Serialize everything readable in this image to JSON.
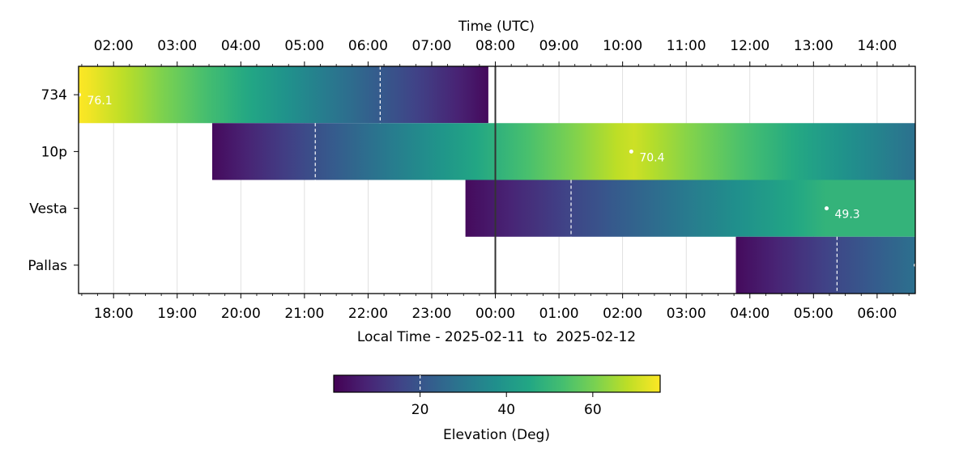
{
  "chart_data": {
    "type": "heatmap",
    "title": "",
    "top_axis_label": "Time (UTC)",
    "bottom_axis_label": "Local Time - 2025-02-11  to  2025-02-12",
    "x_range_utc_hours": [
      1.45,
      14.6
    ],
    "midnight_line_utc_hour": 8.0,
    "top_ticks": [
      {
        "hour": 2,
        "label": "02:00"
      },
      {
        "hour": 3,
        "label": "03:00"
      },
      {
        "hour": 4,
        "label": "04:00"
      },
      {
        "hour": 5,
        "label": "05:00"
      },
      {
        "hour": 6,
        "label": "06:00"
      },
      {
        "hour": 7,
        "label": "07:00"
      },
      {
        "hour": 8,
        "label": "08:00"
      },
      {
        "hour": 9,
        "label": "09:00"
      },
      {
        "hour": 10,
        "label": "10:00"
      },
      {
        "hour": 11,
        "label": "11:00"
      },
      {
        "hour": 12,
        "label": "12:00"
      },
      {
        "hour": 13,
        "label": "13:00"
      },
      {
        "hour": 14,
        "label": "14:00"
      }
    ],
    "bottom_ticks": [
      {
        "hour": 2,
        "label": "18:00"
      },
      {
        "hour": 3,
        "label": "19:00"
      },
      {
        "hour": 4,
        "label": "20:00"
      },
      {
        "hour": 5,
        "label": "21:00"
      },
      {
        "hour": 6,
        "label": "22:00"
      },
      {
        "hour": 7,
        "label": "23:00"
      },
      {
        "hour": 8,
        "label": "00:00"
      },
      {
        "hour": 9,
        "label": "01:00"
      },
      {
        "hour": 10,
        "label": "02:00"
      },
      {
        "hour": 11,
        "label": "03:00"
      },
      {
        "hour": 12,
        "label": "04:00"
      },
      {
        "hour": 13,
        "label": "05:00"
      },
      {
        "hour": 14,
        "label": "06:00"
      }
    ],
    "elevation_threshold_deg": 20,
    "colorbar": {
      "label": "Elevation (Deg)",
      "range": [
        0,
        75.6
      ],
      "ticks": [
        {
          "value": 20,
          "label": "20"
        },
        {
          "value": 40,
          "label": "40"
        },
        {
          "value": 60,
          "label": "60"
        }
      ],
      "threshold_marker": 20
    },
    "objects": [
      {
        "name": "734",
        "start_hour": 1.45,
        "end_hour": 7.89,
        "peak_hour": 1.45,
        "peak_elevation": 76.1,
        "peak_label": "76.1",
        "end_elevation": 2,
        "threshold_hour": 6.19
      },
      {
        "name": "10p",
        "start_hour": 3.55,
        "end_hour": 14.6,
        "peak_hour": 10.13,
        "peak_elevation": 70.4,
        "peak_label": "70.4",
        "start_elevation": 2,
        "end_elevation": 28,
        "threshold_hour": 5.17
      },
      {
        "name": "Vesta",
        "start_hour": 7.53,
        "end_hour": 14.6,
        "peak_hour": 13.2,
        "peak_elevation": 49.3,
        "peak_label": "49.3",
        "start_elevation": 2,
        "threshold_hour": 9.19
      },
      {
        "name": "Pallas",
        "start_hour": 11.78,
        "end_hour": 14.6,
        "start_elevation": 2,
        "end_elevation": 28,
        "threshold_hour": 13.37
      }
    ]
  }
}
